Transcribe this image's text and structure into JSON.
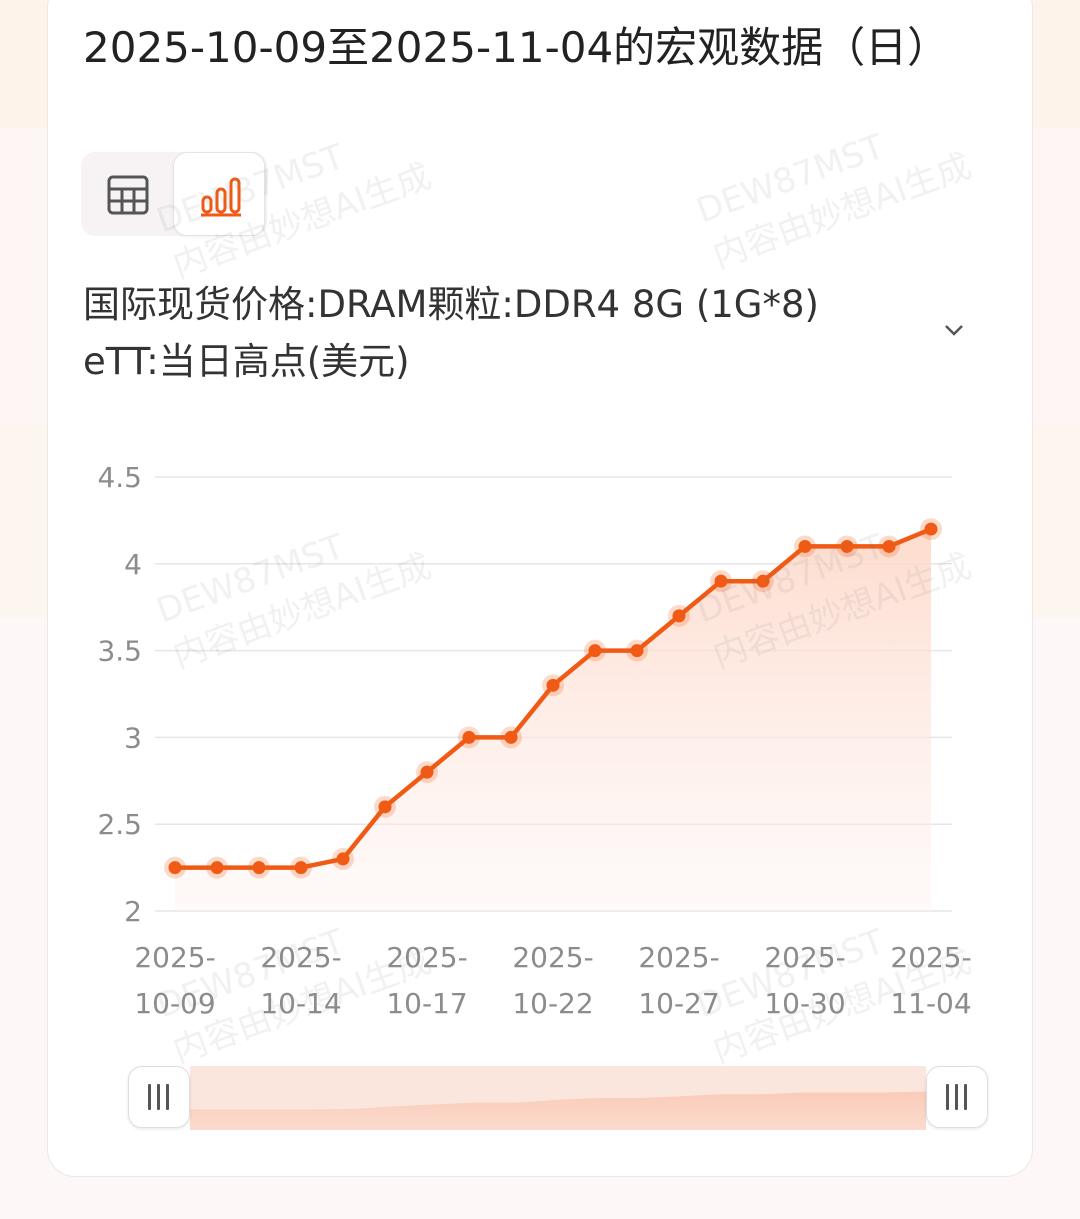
{
  "title": "2025-10-09至2025-11-04的宏观数据（日）",
  "view_toggle": {
    "table_icon": "table-icon",
    "chart_icon": "bar-chart-icon",
    "selected": "chart"
  },
  "indicator_label_line1": "国际现货价格:DRAM颗粒:DDR4 8G (1G*8)",
  "indicator_label_line2": "eTT:当日高点(美元)",
  "watermark": {
    "line1": "DEW87MST",
    "line2": "内容由妙想AI生成"
  },
  "colors": {
    "line": "#f05a14",
    "area_top": "#fde0d4",
    "grid": "#e6e6e6"
  },
  "chart_data": {
    "type": "area",
    "title": "",
    "xlabel": "",
    "ylabel": "",
    "ylim": [
      2,
      4.5
    ],
    "yticks": [
      "2",
      "2.5",
      "3",
      "3.5",
      "4",
      "4.5"
    ],
    "x_tick_labels": [
      [
        "2025-",
        "10-09"
      ],
      [
        "2025-",
        "10-14"
      ],
      [
        "2025-",
        "10-17"
      ],
      [
        "2025-",
        "10-22"
      ],
      [
        "2025-",
        "10-27"
      ],
      [
        "2025-",
        "10-30"
      ],
      [
        "2025-",
        "11-04"
      ]
    ],
    "x": [
      "2025-10-09",
      "2025-10-10",
      "2025-10-13",
      "2025-10-14",
      "2025-10-15",
      "2025-10-16",
      "2025-10-17",
      "2025-10-20",
      "2025-10-21",
      "2025-10-22",
      "2025-10-23",
      "2025-10-24",
      "2025-10-27",
      "2025-10-28",
      "2025-10-29",
      "2025-10-30",
      "2025-10-31",
      "2025-11-03",
      "2025-11-04"
    ],
    "values": [
      2.25,
      2.25,
      2.25,
      2.25,
      2.3,
      2.6,
      2.8,
      3.0,
      3.0,
      3.3,
      3.5,
      3.5,
      3.7,
      3.9,
      3.9,
      4.1,
      4.1,
      4.1,
      4.2
    ],
    "grid": true,
    "legend": "none"
  }
}
